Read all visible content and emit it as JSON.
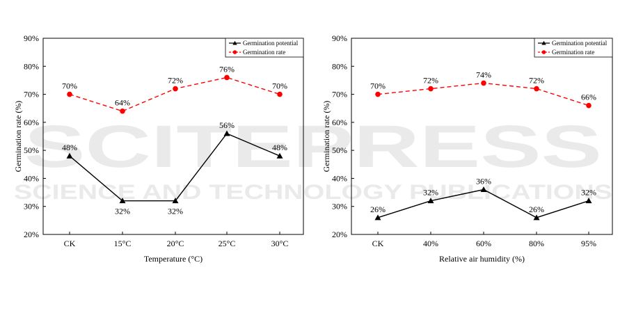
{
  "watermark": {
    "main": "SCITEPRESS",
    "sub": "SCIENCE AND TECHNOLOGY PUBLICATIONS"
  },
  "chart_data": [
    {
      "type": "line",
      "xlabel": "Temperature (°C)",
      "ylabel": "Germination rate (%)",
      "categories": [
        "CK",
        "15°C",
        "20°C",
        "25°C",
        "30°C"
      ],
      "ylim": [
        20,
        90
      ],
      "yticks": [
        "20%",
        "30%",
        "40%",
        "50%",
        "60%",
        "70%",
        "80%",
        "90%"
      ],
      "legend_position": "top-right",
      "grid": false,
      "series": [
        {
          "name": "Germination potential",
          "values": [
            48,
            32,
            32,
            56,
            48
          ],
          "labels": [
            "48%",
            "32%",
            "32%",
            "56%",
            "48%"
          ],
          "label_pos": [
            "above",
            "below",
            "below",
            "above",
            "above"
          ],
          "color": "#000000",
          "marker": "triangle",
          "dash": "solid"
        },
        {
          "name": "Germination rate",
          "values": [
            70,
            64,
            72,
            76,
            70
          ],
          "labels": [
            "70%",
            "64%",
            "72%",
            "76%",
            "70%"
          ],
          "label_pos": [
            "above",
            "above",
            "above",
            "above",
            "above"
          ],
          "color": "#ff0000",
          "marker": "circle",
          "dash": "dashed"
        }
      ]
    },
    {
      "type": "line",
      "xlabel": "Relative air humidity (%)",
      "ylabel": "Germination rate (%)",
      "categories": [
        "CK",
        "40%",
        "60%",
        "80%",
        "95%"
      ],
      "ylim": [
        20,
        90
      ],
      "yticks": [
        "20%",
        "30%",
        "40%",
        "50%",
        "60%",
        "70%",
        "80%",
        "90%"
      ],
      "legend_position": "top-right",
      "grid": false,
      "series": [
        {
          "name": "Germination potential",
          "values": [
            26,
            32,
            36,
            26,
            32
          ],
          "labels": [
            "26%",
            "32%",
            "36%",
            "26%",
            "32%"
          ],
          "label_pos": [
            "above",
            "above",
            "above",
            "above",
            "above"
          ],
          "color": "#000000",
          "marker": "triangle",
          "dash": "solid"
        },
        {
          "name": "Germination rate",
          "values": [
            70,
            72,
            74,
            72,
            66
          ],
          "labels": [
            "70%",
            "72%",
            "74%",
            "72%",
            "66%"
          ],
          "label_pos": [
            "above",
            "above",
            "above",
            "above",
            "above"
          ],
          "color": "#ff0000",
          "marker": "circle",
          "dash": "dashed"
        }
      ]
    }
  ]
}
